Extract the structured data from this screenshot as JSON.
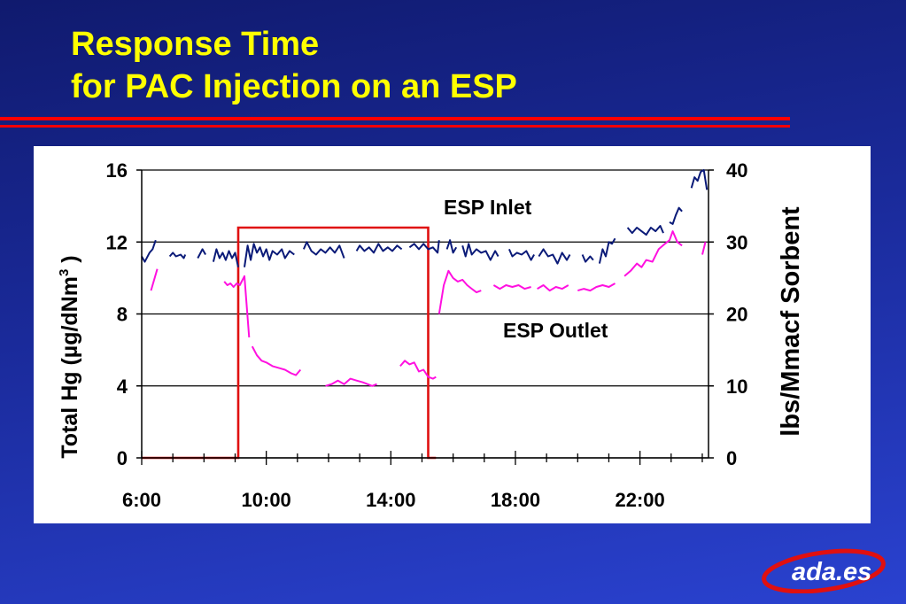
{
  "title": {
    "line1": "Response Time",
    "line2": "for PAC Injection on an ESP"
  },
  "colors": {
    "background_top": "#101a6e",
    "background_bottom": "#2a42d0",
    "title": "#ffff00",
    "rule": "#ff0000",
    "esp_inlet": "#0a1a78",
    "esp_outlet": "#ff10e0",
    "sorbent": "#e01010",
    "logo_text": "#ffffff"
  },
  "logo": {
    "text": "ada.es"
  },
  "chart_data": {
    "type": "line",
    "xlabel": "",
    "ylabel": "Total Hg (µg/dNm",
    "ylabel_sup": "3",
    "ylabel_end": " )",
    "y2label": "lbs/Mmacf Sorbent",
    "xlim": [
      6,
      24.2
    ],
    "ylim": [
      0,
      16
    ],
    "y2lim": [
      0,
      40
    ],
    "x_ticks": [
      6,
      10,
      14,
      18,
      22
    ],
    "x_tick_labels": [
      "6:00",
      "10:00",
      "14:00",
      "18:00",
      "22:00"
    ],
    "y_ticks": [
      0,
      4,
      8,
      12,
      16
    ],
    "y_tick_labels": [
      "0",
      "4",
      "8",
      "12",
      "16"
    ],
    "y2_ticks": [
      0,
      10,
      20,
      30,
      40
    ],
    "y2_tick_labels": [
      "0",
      "10",
      "20",
      "30",
      "40"
    ],
    "grid": "horizontal",
    "annotations": [
      "ESP Inlet",
      "ESP Outlet"
    ],
    "series": [
      {
        "axis": "left",
        "segments": [
          [
            [
              6.0,
              11.2
            ],
            [
              6.1,
              10.9
            ],
            [
              6.25,
              11.4
            ],
            [
              6.35,
              11.6
            ],
            [
              6.45,
              12.1
            ]
          ],
          [
            [
              6.9,
              11.2
            ],
            [
              7.0,
              11.4
            ],
            [
              7.1,
              11.2
            ],
            [
              7.25,
              11.3
            ],
            [
              7.35,
              11.1
            ],
            [
              7.4,
              11.3
            ]
          ],
          [
            [
              7.8,
              11.1
            ],
            [
              7.95,
              11.6
            ],
            [
              8.05,
              11.3
            ]
          ],
          [
            [
              8.3,
              10.9
            ],
            [
              8.4,
              11.6
            ],
            [
              8.5,
              11.1
            ],
            [
              8.6,
              11.4
            ],
            [
              8.7,
              11.0
            ],
            [
              8.8,
              11.5
            ],
            [
              8.9,
              11.1
            ],
            [
              9.0,
              11.4
            ],
            [
              9.1,
              10.6
            ]
          ],
          [
            [
              9.3,
              10.6
            ],
            [
              9.4,
              11.8
            ],
            [
              9.5,
              11.0
            ],
            [
              9.6,
              11.9
            ],
            [
              9.7,
              11.4
            ],
            [
              9.8,
              11.7
            ],
            [
              9.9,
              11.2
            ],
            [
              10.0,
              11.6
            ],
            [
              10.1,
              11.0
            ],
            [
              10.2,
              11.5
            ],
            [
              10.35,
              11.3
            ],
            [
              10.5,
              11.6
            ],
            [
              10.6,
              11.1
            ],
            [
              10.75,
              11.5
            ],
            [
              10.9,
              11.3
            ]
          ],
          [
            [
              11.2,
              11.6
            ],
            [
              11.3,
              12.0
            ],
            [
              11.45,
              11.5
            ],
            [
              11.6,
              11.3
            ],
            [
              11.75,
              11.6
            ],
            [
              11.9,
              11.4
            ],
            [
              12.05,
              11.7
            ],
            [
              12.2,
              11.4
            ],
            [
              12.35,
              11.8
            ],
            [
              12.5,
              11.1
            ]
          ],
          [
            [
              12.9,
              11.5
            ],
            [
              13.0,
              11.8
            ],
            [
              13.15,
              11.5
            ],
            [
              13.3,
              11.7
            ],
            [
              13.45,
              11.4
            ],
            [
              13.6,
              11.9
            ],
            [
              13.75,
              11.5
            ],
            [
              13.9,
              11.7
            ],
            [
              14.05,
              11.5
            ],
            [
              14.2,
              11.8
            ],
            [
              14.35,
              11.6
            ]
          ],
          [
            [
              14.6,
              11.7
            ],
            [
              14.75,
              11.9
            ],
            [
              14.9,
              11.6
            ],
            [
              15.05,
              11.9
            ],
            [
              15.2,
              11.6
            ],
            [
              15.35,
              11.7
            ],
            [
              15.5,
              11.4
            ],
            [
              15.55,
              12.1
            ]
          ],
          [
            [
              15.8,
              11.6
            ],
            [
              15.9,
              12.1
            ],
            [
              16.0,
              11.4
            ],
            [
              16.1,
              11.7
            ]
          ],
          [
            [
              16.3,
              11.8
            ],
            [
              16.4,
              11.2
            ],
            [
              16.5,
              11.9
            ],
            [
              16.6,
              11.3
            ],
            [
              16.75,
              11.6
            ],
            [
              16.9,
              11.4
            ],
            [
              17.05,
              11.5
            ],
            [
              17.2,
              11.0
            ],
            [
              17.35,
              11.5
            ],
            [
              17.45,
              11.2
            ]
          ],
          [
            [
              17.8,
              11.6
            ],
            [
              17.9,
              11.2
            ],
            [
              18.05,
              11.4
            ],
            [
              18.2,
              11.3
            ],
            [
              18.35,
              11.5
            ],
            [
              18.5,
              11.0
            ],
            [
              18.6,
              11.3
            ]
          ],
          [
            [
              18.75,
              11.2
            ],
            [
              18.9,
              11.6
            ],
            [
              19.05,
              11.2
            ],
            [
              19.2,
              11.3
            ],
            [
              19.35,
              10.8
            ],
            [
              19.5,
              11.4
            ],
            [
              19.65,
              11.0
            ],
            [
              19.75,
              11.3
            ]
          ],
          [
            [
              20.15,
              11.3
            ],
            [
              20.25,
              10.9
            ],
            [
              20.4,
              11.2
            ],
            [
              20.5,
              11.0
            ]
          ],
          [
            [
              20.7,
              10.8
            ],
            [
              20.8,
              11.6
            ],
            [
              20.9,
              11.2
            ],
            [
              21.0,
              12.0
            ],
            [
              21.1,
              11.9
            ],
            [
              21.2,
              12.2
            ]
          ],
          [
            [
              21.6,
              12.8
            ],
            [
              21.75,
              12.5
            ],
            [
              21.9,
              12.8
            ],
            [
              22.05,
              12.6
            ],
            [
              22.2,
              12.4
            ],
            [
              22.35,
              12.8
            ],
            [
              22.5,
              12.6
            ],
            [
              22.65,
              12.9
            ],
            [
              22.75,
              12.5
            ]
          ],
          [
            [
              22.95,
              13.1
            ],
            [
              23.05,
              13.0
            ],
            [
              23.15,
              13.5
            ],
            [
              23.25,
              13.9
            ],
            [
              23.35,
              13.7
            ]
          ],
          [
            [
              23.65,
              15.0
            ],
            [
              23.75,
              15.6
            ],
            [
              23.85,
              15.4
            ],
            [
              23.95,
              15.9
            ],
            [
              24.05,
              16.0
            ],
            [
              24.15,
              14.9
            ]
          ]
        ]
      },
      {
        "axis": "left",
        "segments": [
          [
            [
              6.3,
              9.3
            ],
            [
              6.5,
              10.5
            ]
          ],
          [
            [
              8.65,
              9.8
            ],
            [
              8.75,
              9.6
            ],
            [
              8.85,
              9.7
            ],
            [
              8.95,
              9.5
            ],
            [
              9.05,
              9.7
            ],
            [
              9.15,
              9.6
            ],
            [
              9.3,
              10.1
            ],
            [
              9.45,
              6.7
            ]
          ],
          [
            [
              9.55,
              6.2
            ],
            [
              9.7,
              5.7
            ],
            [
              9.85,
              5.4
            ],
            [
              10.0,
              5.3
            ],
            [
              10.2,
              5.1
            ],
            [
              10.4,
              5.0
            ],
            [
              10.6,
              4.9
            ],
            [
              10.8,
              4.7
            ],
            [
              10.95,
              4.6
            ],
            [
              11.1,
              4.9
            ]
          ],
          [
            [
              11.9,
              4.0
            ],
            [
              12.1,
              4.1
            ],
            [
              12.3,
              4.3
            ],
            [
              12.5,
              4.1
            ],
            [
              12.7,
              4.4
            ],
            [
              12.9,
              4.3
            ],
            [
              13.1,
              4.2
            ],
            [
              13.25,
              4.1
            ],
            [
              13.4,
              4.0
            ],
            [
              13.55,
              4.1
            ]
          ],
          [
            [
              14.3,
              5.1
            ],
            [
              14.45,
              5.4
            ],
            [
              14.6,
              5.2
            ],
            [
              14.75,
              5.3
            ],
            [
              14.9,
              4.8
            ],
            [
              15.05,
              4.9
            ],
            [
              15.2,
              4.5
            ],
            [
              15.35,
              4.4
            ],
            [
              15.45,
              4.5
            ]
          ],
          [
            [
              15.55,
              8.0
            ],
            [
              15.7,
              9.6
            ],
            [
              15.85,
              10.4
            ],
            [
              16.0,
              10.0
            ],
            [
              16.15,
              9.8
            ],
            [
              16.3,
              9.9
            ],
            [
              16.45,
              9.6
            ],
            [
              16.6,
              9.4
            ],
            [
              16.75,
              9.2
            ],
            [
              16.9,
              9.3
            ]
          ],
          [
            [
              17.3,
              9.6
            ],
            [
              17.5,
              9.4
            ],
            [
              17.7,
              9.6
            ],
            [
              17.9,
              9.5
            ],
            [
              18.1,
              9.6
            ],
            [
              18.3,
              9.4
            ],
            [
              18.5,
              9.5
            ]
          ],
          [
            [
              18.7,
              9.4
            ],
            [
              18.9,
              9.6
            ],
            [
              19.1,
              9.3
            ],
            [
              19.3,
              9.5
            ],
            [
              19.5,
              9.4
            ],
            [
              19.7,
              9.6
            ]
          ],
          [
            [
              20.0,
              9.3
            ],
            [
              20.2,
              9.4
            ],
            [
              20.4,
              9.3
            ],
            [
              20.6,
              9.5
            ],
            [
              20.8,
              9.6
            ],
            [
              21.0,
              9.5
            ],
            [
              21.2,
              9.7
            ]
          ],
          [
            [
              21.5,
              10.1
            ],
            [
              21.7,
              10.4
            ],
            [
              21.9,
              10.8
            ],
            [
              22.05,
              10.6
            ],
            [
              22.2,
              11.0
            ],
            [
              22.4,
              10.9
            ],
            [
              22.6,
              11.6
            ],
            [
              22.8,
              11.9
            ],
            [
              22.95,
              12.1
            ],
            [
              23.05,
              12.6
            ],
            [
              23.2,
              12.0
            ],
            [
              23.35,
              11.8
            ]
          ],
          [
            [
              24.0,
              11.3
            ],
            [
              24.1,
              12.0
            ]
          ]
        ]
      },
      {
        "axis": "right",
        "points": [
          [
            6.0,
            0
          ],
          [
            9.1,
            0
          ],
          [
            9.1,
            32
          ],
          [
            15.2,
            32
          ],
          [
            15.2,
            0
          ],
          [
            15.45,
            0
          ]
        ]
      }
    ]
  }
}
